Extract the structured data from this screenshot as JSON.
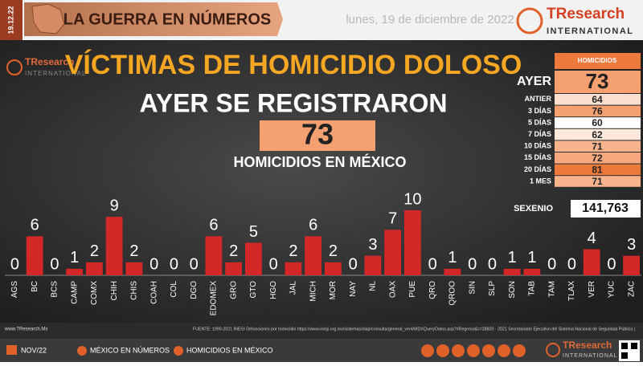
{
  "header": {
    "date_tab": "19.12.22",
    "banner": "LA GUERRA EN NÚMEROS",
    "date": "lunes, 19 de diciembre de 2022",
    "logo": "TResearch",
    "logo_sub": "INTERNATIONAL"
  },
  "watermark": {
    "logo": "TResearch",
    "logo_sub": "INTERNATIONAL"
  },
  "chart_data": {
    "type": "bar",
    "title": "VÍCTIMAS DE HOMICIDIO DOLOSO",
    "subtitle": "AYER SE REGISTRARON",
    "total": 73,
    "total_caption": "HOMICIDIOS EN MÉXICO",
    "categories": [
      "AGS",
      "BC",
      "BCS",
      "CAMP",
      "COMX",
      "CHIH",
      "CHIS",
      "COAH",
      "COL",
      "DGO",
      "EDOMEX",
      "GRO",
      "GTO",
      "HGO",
      "JAL",
      "MICH",
      "MOR",
      "NAY",
      "NL",
      "OAX",
      "PUE",
      "QRO",
      "QROO",
      "SIN",
      "SLP",
      "SON",
      "TAB",
      "TAM",
      "TLAX",
      "VER",
      "YUC",
      "ZAC"
    ],
    "values": [
      0,
      6,
      0,
      1,
      2,
      9,
      2,
      0,
      0,
      0,
      6,
      2,
      5,
      0,
      2,
      6,
      2,
      0,
      3,
      7,
      10,
      0,
      1,
      0,
      0,
      1,
      1,
      0,
      0,
      4,
      0,
      3
    ],
    "color": "#d42828",
    "ylim": [
      0,
      10
    ]
  },
  "side_table": {
    "header": "HOMICIDIOS",
    "rows": [
      {
        "label": "AYER",
        "value": 73,
        "color": "#f4a070"
      },
      {
        "label": "ANTIER",
        "value": 64,
        "color": "#fbe0cf"
      },
      {
        "label": "3 DÍAS",
        "value": 76,
        "color": "#f4a070"
      },
      {
        "label": "5 DÍAS",
        "value": 60,
        "color": "#ffffff"
      },
      {
        "label": "7 DÍAS",
        "value": 62,
        "color": "#fde9dc"
      },
      {
        "label": "10 DÍAS",
        "value": 71,
        "color": "#f7b48c"
      },
      {
        "label": "15 DÍAS",
        "value": 72,
        "color": "#f6a87e"
      },
      {
        "label": "20 DÍAS",
        "value": 81,
        "color": "#ec7a3c"
      },
      {
        "label": "1 MES",
        "value": 71,
        "color": "#f7b48c"
      }
    ],
    "sexenio_label": "SEXENIO",
    "sexenio_value": "141,763"
  },
  "footer": {
    "site": "www.TResearch.Mx",
    "source": "FUENTE: 1990-2021 INEGI Defunciones por homicidio https://www.inegi.org.mx/sistemas/olap/consulta/general_ver4/MDXQueryDatos.asp?#Regreso&c=28820 · 2021 Secretariado Ejecutivo del Sistema Nacional de Seguridad Pública |",
    "nav": [
      "NOV/22",
      "MÉXICO EN NÚMEROS",
      "HOMICIDIOS EN MÉXICO"
    ],
    "logo": "TResearch",
    "logo_sub": "INTERNATIONAL"
  }
}
